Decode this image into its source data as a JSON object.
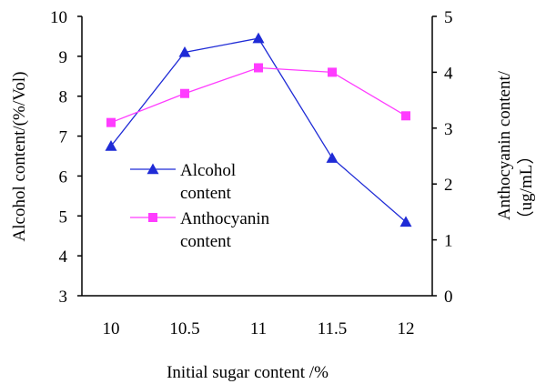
{
  "chart_data": {
    "type": "line",
    "xlabel": "Initial sugar content /%",
    "ylabel": "Alcohol content/(%/Vol)",
    "y2label_line1": "Anthocyanin content/",
    "y2label_line2": "（ug/mL）",
    "categories": [
      "10",
      "10.5",
      "11",
      "11.5",
      "12"
    ],
    "ylim": [
      3,
      10
    ],
    "yticks": [
      "3",
      "4",
      "5",
      "6",
      "7",
      "8",
      "9",
      "10"
    ],
    "y2lim": [
      0,
      5
    ],
    "y2ticks": [
      "0",
      "1",
      "2",
      "3",
      "4",
      "5"
    ],
    "grid": false,
    "legend_position": "middle-left",
    "series": [
      {
        "name_line1": "Alcohol",
        "name_line2": "content",
        "axis": "left",
        "marker": "triangle",
        "color": "#1f2bd6",
        "values": [
          6.75,
          9.1,
          9.45,
          6.45,
          4.85
        ]
      },
      {
        "name_line1": "Anthocyanin",
        "name_line2": "content",
        "axis": "right",
        "marker": "square",
        "color": "#ff3cff",
        "values": [
          3.1,
          3.62,
          4.08,
          4.0,
          3.22
        ]
      }
    ]
  }
}
